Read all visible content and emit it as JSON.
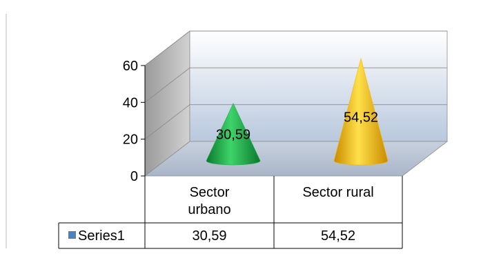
{
  "chart_data": {
    "type": "bar",
    "style": "3d-cone",
    "categories": [
      "Sector urbano",
      "Sector rural"
    ],
    "category_lines": [
      [
        "Sector",
        "urbano"
      ],
      [
        "Sector rural"
      ]
    ],
    "series": [
      {
        "name": "Series1",
        "values": [
          30.59,
          54.52
        ],
        "labels": [
          "30,59",
          "54,52"
        ]
      }
    ],
    "ylim": [
      0,
      60
    ],
    "yticks": [
      0,
      20,
      40,
      60
    ],
    "grid": true,
    "legend": "data-table",
    "colors": {
      "cone_1": "#1faa4a",
      "cone_2": "#f2b807",
      "legend_marker": "#4f81bd",
      "back_wall_top": "#ffffff",
      "back_wall_bottom": "#b9c8de",
      "side_wall": "#b4b4b4",
      "floor": "#b4bfd0"
    }
  }
}
